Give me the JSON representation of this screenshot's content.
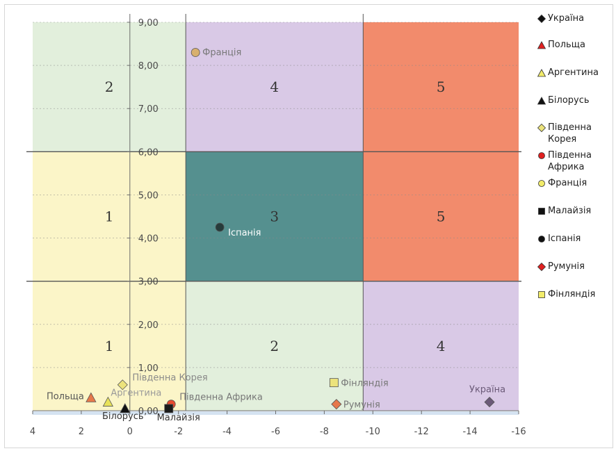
{
  "chart_data": {
    "type": "scatter",
    "xlim": [
      4,
      -16
    ],
    "ylim": [
      0,
      9
    ],
    "x_ticks": [
      "4",
      "2",
      "0",
      "-2",
      "-4",
      "-6",
      "-8",
      "-10",
      "-12",
      "-14",
      "-16"
    ],
    "x_tick_values": [
      4,
      2,
      0,
      -2,
      -4,
      -6,
      -8,
      -10,
      -12,
      -14,
      -16
    ],
    "y_ticks": [
      "0,00",
      "1,00",
      "2,00",
      "3,00",
      "4,00",
      "5,00",
      "6,00",
      "7,00",
      "8,00",
      "9,00"
    ],
    "y_tick_values": [
      0,
      1,
      2,
      3,
      4,
      5,
      6,
      7,
      8,
      9
    ],
    "x_dividers": [
      -2.3,
      -9.6
    ],
    "y_dividers": [
      3,
      6
    ],
    "zones": [
      {
        "label": "2",
        "x": [
          4,
          -2.3
        ],
        "y": [
          6,
          9
        ],
        "color": "#e2efdc"
      },
      {
        "label": "4",
        "x": [
          -2.3,
          -9.6
        ],
        "y": [
          6,
          9
        ],
        "color": "#d9c9e6"
      },
      {
        "label": "5",
        "x": [
          -9.6,
          -16
        ],
        "y": [
          6,
          9
        ],
        "color": "#f28b6c"
      },
      {
        "label": "1",
        "x": [
          4,
          -2.3
        ],
        "y": [
          3,
          6
        ],
        "color": "#fbf5c8"
      },
      {
        "label": "3",
        "x": [
          -2.3,
          -9.6
        ],
        "y": [
          3,
          6
        ],
        "color": "#55908f"
      },
      {
        "label": "5",
        "x": [
          -9.6,
          -16
        ],
        "y": [
          3,
          6
        ],
        "color": "#f28b6c"
      },
      {
        "label": "1",
        "x": [
          4,
          -2.3
        ],
        "y": [
          0,
          3
        ],
        "color": "#fbf5c8"
      },
      {
        "label": "2",
        "x": [
          -2.3,
          -9.6
        ],
        "y": [
          0,
          3
        ],
        "color": "#e2efdc"
      },
      {
        "label": "4",
        "x": [
          -9.6,
          -16
        ],
        "y": [
          0,
          3
        ],
        "color": "#d9c9e6"
      }
    ],
    "series": [
      {
        "name": "Україна",
        "x": -14.8,
        "y": 0.2,
        "marker": "diamond",
        "color": "#6b5a78",
        "label_color": "#6b5a78"
      },
      {
        "name": "Польща",
        "x": 1.6,
        "y": 0.3,
        "marker": "triangle",
        "color": "#e6784a",
        "label_color": "#555555"
      },
      {
        "name": "Аргентина",
        "x": 0.9,
        "y": 0.2,
        "marker": "triangle",
        "color": "#e8e25a",
        "label_color": "#9a9a9a"
      },
      {
        "name": "Білорусь",
        "x": 0.2,
        "y": 0.05,
        "marker": "triangle",
        "color": "#111111",
        "label_color": "#333333"
      },
      {
        "name": "Південна Корея",
        "x": 0.3,
        "y": 0.6,
        "marker": "diamond",
        "color": "#ece37c",
        "label_color": "#8a8a8a"
      },
      {
        "name": "Південна Африка",
        "x": -1.7,
        "y": 0.15,
        "marker": "circle",
        "color": "#e84a2e",
        "label_color": "#777777"
      },
      {
        "name": "Франція",
        "x": -2.7,
        "y": 8.3,
        "marker": "circle",
        "color": "#d8b06e",
        "label_color": "#777777"
      },
      {
        "name": "Малайзія",
        "x": -1.6,
        "y": 0.05,
        "marker": "square",
        "color": "#1a1a1a",
        "label_color": "#333333"
      },
      {
        "name": "Іспанія",
        "x": -3.7,
        "y": 4.25,
        "marker": "circle",
        "color": "#263b3b",
        "label_color": "#ffffff"
      },
      {
        "name": "Румунія",
        "x": -8.5,
        "y": 0.15,
        "marker": "diamond",
        "color": "#e6784a",
        "label_color": "#777777"
      },
      {
        "name": "Фінляндія",
        "x": -8.4,
        "y": 0.65,
        "marker": "square",
        "color": "#ece37c",
        "label_color": "#777777"
      }
    ],
    "legend": [
      {
        "name": "Україна",
        "marker": "diamond",
        "color": "#111111"
      },
      {
        "name": "Польща",
        "marker": "triangle",
        "color": "#e02020"
      },
      {
        "name": "Аргентина",
        "marker": "triangle",
        "color": "#f2ec6a"
      },
      {
        "name": "Білорусь",
        "marker": "triangle",
        "color": "#111111"
      },
      {
        "name": "Південна Корея",
        "marker": "diamond",
        "color": "#ece37c"
      },
      {
        "name": "Південна Африка",
        "marker": "circle",
        "color": "#e02020"
      },
      {
        "name": "Франція",
        "marker": "circle",
        "color": "#f2ec6a"
      },
      {
        "name": "Малайзія",
        "marker": "square",
        "color": "#111111"
      },
      {
        "name": "Іспанія",
        "marker": "circle",
        "color": "#111111"
      },
      {
        "name": "Румунія",
        "marker": "diamond",
        "color": "#e02020"
      },
      {
        "name": "Фінляндія",
        "marker": "square",
        "color": "#f2ec6a"
      }
    ],
    "legend_position": "right",
    "grid": true
  }
}
